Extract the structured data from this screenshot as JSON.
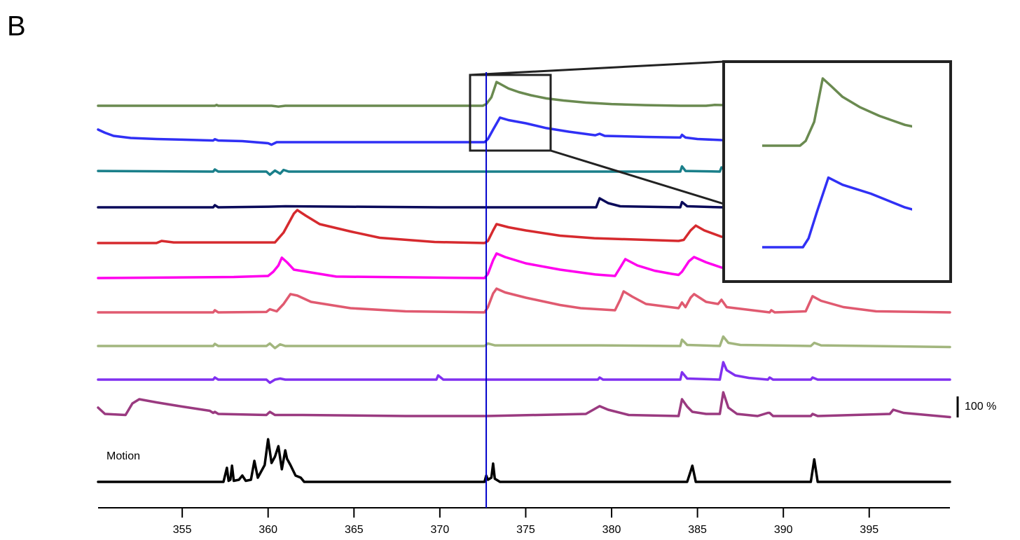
{
  "chart_data": {
    "type": "line",
    "panel_label": "B",
    "xlim": [
      350.1,
      399.7
    ],
    "xticks": [
      355,
      360,
      365,
      370,
      375,
      380,
      385,
      390,
      395
    ],
    "x_marker": 372.7,
    "x_marker_color": "#0000cc",
    "scale_bar": {
      "value": 100,
      "label": "100 %"
    },
    "series": [
      {
        "color": "#6a8a50",
        "x": [
          350.1,
          356.9,
          357.0,
          357.1,
          360.2,
          360.6,
          361.0,
          372.5,
          372.7,
          373.0,
          373.3,
          373.6,
          374.0,
          374.6,
          375.3,
          376.2,
          377.2,
          378.5,
          380.0,
          382.0,
          384.0,
          385.5,
          386.0,
          388.0,
          399.7
        ],
        "values": [
          0,
          0,
          4,
          0,
          0,
          -4,
          0,
          0,
          8,
          40,
          113,
          100,
          82,
          65,
          50,
          35,
          25,
          15,
          8,
          3,
          0,
          0,
          4,
          0,
          0
        ]
      },
      {
        "color": "#3030f5",
        "x": [
          350.1,
          350.5,
          351.0,
          352.0,
          353.5,
          355.0,
          356.8,
          356.9,
          357.1,
          358.5,
          360.0,
          360.2,
          360.5,
          361.0,
          365.0,
          372.6,
          372.8,
          373.1,
          373.5,
          374.0,
          375.0,
          376.2,
          377.5,
          379.05,
          379.3,
          379.6,
          382.0,
          384.0,
          384.1,
          384.3,
          385.0,
          386.4,
          399.7
        ],
        "values": [
          60,
          45,
          30,
          20,
          15,
          12,
          8,
          14,
          8,
          5,
          -5,
          -12,
          0,
          0,
          0,
          0,
          15,
          60,
          117,
          105,
          90,
          67,
          50,
          33,
          40,
          30,
          25,
          22,
          35,
          22,
          15,
          10,
          5
        ]
      },
      {
        "color": "#1a7f8a",
        "x": [
          350.1,
          356.8,
          356.9,
          357.1,
          359.9,
          360.1,
          360.4,
          360.7,
          360.9,
          361.2,
          372.7,
          384.0,
          384.1,
          384.3,
          386.3,
          386.4,
          386.7,
          399.7
        ],
        "values": [
          3,
          0,
          10,
          0,
          0,
          -15,
          5,
          -10,
          8,
          0,
          0,
          0,
          25,
          3,
          0,
          20,
          3,
          0
        ]
      },
      {
        "color": "#0a0a5a",
        "x": [
          350.1,
          356.8,
          356.9,
          357.1,
          360.0,
          361.0,
          370,
          372.7,
          379.1,
          379.3,
          379.8,
          380.5,
          384.0,
          384.1,
          384.4,
          386.4,
          399.7
        ],
        "values": [
          0,
          0,
          10,
          0,
          3,
          5,
          0,
          0,
          0,
          43,
          20,
          5,
          0,
          25,
          5,
          0,
          0
        ]
      },
      {
        "color": "#d62a2e",
        "x": [
          350.1,
          353.5,
          353.8,
          354.5,
          358,
          360.4,
          360.9,
          361.5,
          361.7,
          362.2,
          363,
          364.8,
          366.5,
          369.7,
          372.6,
          372.8,
          373.1,
          373.3,
          374.0,
          375.0,
          377.0,
          379,
          383.9,
          384.2,
          384.6,
          384.9,
          385.4,
          386.4,
          399.7
        ],
        "values": [
          0,
          0,
          10,
          3,
          3,
          3,
          50,
          140,
          157,
          130,
          90,
          55,
          25,
          5,
          0,
          10,
          60,
          90,
          75,
          60,
          35,
          23,
          10,
          15,
          60,
          83,
          60,
          30,
          10
        ]
      },
      {
        "color": "#ff00ee",
        "x": [
          350.1,
          358,
          360.0,
          360.3,
          360.6,
          360.8,
          361.1,
          361.5,
          363.96,
          372.6,
          372.8,
          373.1,
          373.3,
          373.8,
          375,
          377,
          379.05,
          380.2,
          380.5,
          380.8,
          381.5,
          382.5,
          383.5,
          383.9,
          384.1,
          384.5,
          384.8,
          385.5,
          386.4,
          399.7
        ],
        "values": [
          0,
          5,
          10,
          30,
          60,
          97,
          75,
          40,
          7,
          0,
          20,
          85,
          117,
          100,
          70,
          40,
          17,
          10,
          50,
          90,
          60,
          35,
          20,
          15,
          30,
          80,
          100,
          75,
          50,
          0
        ]
      },
      {
        "color": "#e05a70",
        "x": [
          350.1,
          356.8,
          356.9,
          357.1,
          359.9,
          360.1,
          360.5,
          360.9,
          361.3,
          361.7,
          362.5,
          364.8,
          368,
          372.6,
          372.8,
          373.1,
          373.3,
          373.8,
          375,
          377,
          378.2,
          380.2,
          380.5,
          380.7,
          381.2,
          382,
          383.9,
          384.1,
          384.3,
          384.6,
          384.8,
          385.5,
          386.2,
          386.4,
          386.7,
          389.2,
          389.3,
          389.5,
          391.3,
          391.7,
          392.2,
          393.5,
          395.4,
          399.7
        ],
        "values": [
          0,
          0,
          10,
          0,
          2,
          15,
          5,
          40,
          87,
          80,
          50,
          20,
          5,
          0,
          25,
          90,
          113,
          95,
          70,
          35,
          20,
          10,
          60,
          100,
          75,
          40,
          20,
          47,
          25,
          70,
          87,
          50,
          40,
          60,
          25,
          0,
          10,
          0,
          5,
          77,
          55,
          25,
          5,
          0
        ]
      },
      {
        "color": "#a2b67e",
        "x": [
          350.1,
          356.8,
          356.9,
          357.1,
          359.9,
          360.1,
          360.4,
          360.7,
          361,
          372.6,
          372.8,
          373.2,
          379.3,
          384.0,
          384.1,
          384.4,
          386.3,
          386.5,
          386.8,
          387.5,
          391.6,
          391.8,
          392.2,
          399.7
        ],
        "values": [
          0,
          0,
          10,
          0,
          0,
          12,
          -10,
          8,
          0,
          0,
          12,
          3,
          3,
          0,
          30,
          5,
          0,
          45,
          15,
          5,
          0,
          15,
          3,
          -5
        ]
      },
      {
        "color": "#8030f0",
        "x": [
          350.1,
          356.8,
          356.9,
          357.1,
          359.9,
          360.1,
          360.4,
          360.7,
          361,
          369.8,
          369.9,
          370.2,
          372.7,
          379.2,
          379.3,
          379.5,
          384.0,
          384.1,
          384.4,
          386.3,
          386.5,
          386.7,
          387.2,
          388,
          389.1,
          389.2,
          389.4,
          391.6,
          391.7,
          392,
          399.7
        ],
        "values": [
          0,
          0,
          10,
          0,
          0,
          -15,
          0,
          5,
          0,
          0,
          20,
          0,
          0,
          0,
          10,
          0,
          0,
          35,
          5,
          0,
          83,
          45,
          20,
          8,
          0,
          10,
          0,
          0,
          10,
          0,
          0
        ]
      },
      {
        "color": "#9a3a80",
        "x": [
          350.1,
          350.5,
          351.7,
          352.1,
          352.5,
          353.5,
          355,
          356.6,
          356.8,
          356.9,
          357.1,
          359.9,
          360.1,
          360.4,
          362,
          368,
          372.7,
          378.5,
          379.3,
          379.8,
          381,
          383.9,
          384.1,
          384.4,
          384.7,
          385.5,
          386.3,
          386.5,
          386.8,
          387.3,
          388.5,
          389.1,
          389.2,
          389.4,
          391.6,
          391.7,
          392,
          396.2,
          396.4,
          397,
          399.7
        ],
        "values": [
          40,
          10,
          5,
          60,
          80,
          65,
          45,
          25,
          15,
          20,
          10,
          5,
          20,
          5,
          5,
          0,
          0,
          10,
          47,
          30,
          5,
          0,
          80,
          45,
          20,
          10,
          10,
          113,
          40,
          10,
          0,
          15,
          15,
          0,
          0,
          10,
          0,
          10,
          30,
          15,
          -5
        ]
      },
      {
        "name": "Motion",
        "color": "#000000",
        "x": [
          350.1,
          357.4,
          357.6,
          357.7,
          357.8,
          357.9,
          358.0,
          358.3,
          358.5,
          358.7,
          359.0,
          359.2,
          359.4,
          359.8,
          360.0,
          360.2,
          360.4,
          360.6,
          360.8,
          361.0,
          361.1,
          361.3,
          361.6,
          361.9,
          362.1,
          372.6,
          372.7,
          372.8,
          373.0,
          373.1,
          373.2,
          373.5,
          384.4,
          384.6,
          384.7,
          384.9,
          391.6,
          391.8,
          392.0,
          399.7
        ],
        "values": [
          0,
          0,
          67,
          5,
          10,
          77,
          5,
          10,
          30,
          5,
          10,
          100,
          20,
          80,
          203,
          90,
          120,
          170,
          60,
          150,
          110,
          80,
          30,
          20,
          0,
          0,
          30,
          10,
          20,
          87,
          15,
          0,
          0,
          50,
          77,
          0,
          0,
          107,
          0,
          0
        ]
      }
    ]
  }
}
